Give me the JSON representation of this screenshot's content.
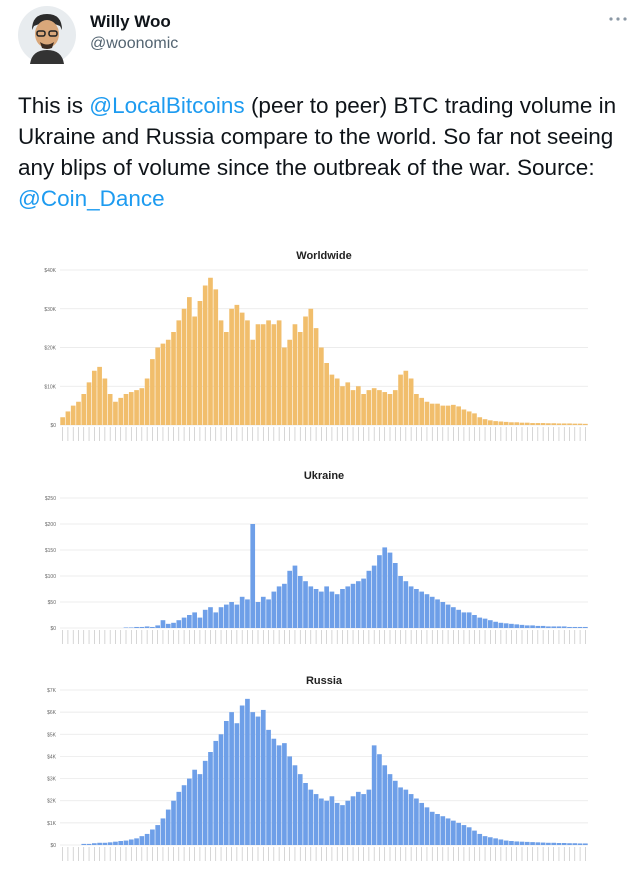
{
  "tweet": {
    "author_name": "Willy Woo",
    "author_handle": "@woonomic",
    "text_parts": [
      "This is ",
      "@LocalBitcoins",
      " (peer to peer) BTC trading volume in Ukraine and Russia compare to the world. So far not seeing any blips of volume since the outbreak of the war. Source: ",
      "@Coin_Dance"
    ]
  },
  "chart_data": [
    {
      "type": "bar",
      "title": "Worldwide",
      "color": "#f1be6c",
      "grid": true,
      "ylim": [
        0,
        40000
      ],
      "yticks": [
        {
          "value": 0,
          "label": "$0"
        },
        {
          "value": 10000,
          "label": "$10K"
        },
        {
          "value": 20000,
          "label": "$20K"
        },
        {
          "value": 30000,
          "label": "$30K"
        },
        {
          "value": 40000,
          "label": "$40K"
        }
      ],
      "values": [
        2000,
        3500,
        5000,
        6000,
        8000,
        11000,
        14000,
        15000,
        12000,
        8000,
        6000,
        7000,
        8000,
        8500,
        9000,
        9500,
        12000,
        17000,
        20000,
        21000,
        22000,
        24000,
        27000,
        30000,
        33000,
        28000,
        32000,
        36000,
        38000,
        35000,
        27000,
        24000,
        30000,
        31000,
        29000,
        27000,
        22000,
        26000,
        26000,
        27000,
        26000,
        27000,
        20000,
        22000,
        26000,
        24000,
        28000,
        30000,
        25000,
        20000,
        16000,
        13000,
        12000,
        10000,
        11000,
        9000,
        10000,
        8000,
        9000,
        9500,
        9000,
        8500,
        8000,
        9000,
        13000,
        14000,
        12000,
        8000,
        7000,
        6000,
        5500,
        5500,
        5000,
        5000,
        5200,
        4800,
        4000,
        3500,
        3000,
        2000,
        1500,
        1200,
        1000,
        900,
        800,
        700,
        700,
        600,
        600,
        500,
        500,
        500,
        450,
        450,
        400,
        400,
        400,
        350,
        350,
        300
      ]
    },
    {
      "type": "bar",
      "title": "Ukraine",
      "color": "#6e9fe8",
      "grid": true,
      "ylim": [
        0,
        250
      ],
      "yticks": [
        {
          "value": 0,
          "label": "$0"
        },
        {
          "value": 50,
          "label": "$50"
        },
        {
          "value": 100,
          "label": "$100"
        },
        {
          "value": 150,
          "label": "$150"
        },
        {
          "value": 200,
          "label": "$200"
        },
        {
          "value": 250,
          "label": "$250"
        }
      ],
      "values": [
        0,
        0,
        0,
        0,
        0,
        0,
        0,
        0,
        0,
        0,
        0,
        0,
        1,
        1,
        2,
        2,
        3,
        2,
        5,
        15,
        8,
        10,
        15,
        20,
        25,
        30,
        20,
        35,
        40,
        30,
        40,
        45,
        50,
        45,
        60,
        55,
        200,
        50,
        60,
        55,
        70,
        80,
        85,
        110,
        120,
        100,
        90,
        80,
        75,
        70,
        80,
        70,
        65,
        75,
        80,
        85,
        90,
        95,
        110,
        120,
        140,
        155,
        145,
        125,
        100,
        90,
        80,
        75,
        70,
        65,
        60,
        55,
        50,
        45,
        40,
        35,
        30,
        30,
        25,
        20,
        18,
        15,
        12,
        10,
        9,
        8,
        7,
        6,
        5,
        5,
        4,
        4,
        3,
        3,
        3,
        3,
        2,
        2,
        2,
        2
      ]
    },
    {
      "type": "bar",
      "title": "Russia",
      "color": "#6e9fe8",
      "grid": true,
      "ylim": [
        0,
        7000
      ],
      "yticks": [
        {
          "value": 0,
          "label": "$0"
        },
        {
          "value": 1000,
          "label": "$1K"
        },
        {
          "value": 2000,
          "label": "$2K"
        },
        {
          "value": 3000,
          "label": "$3K"
        },
        {
          "value": 4000,
          "label": "$4K"
        },
        {
          "value": 5000,
          "label": "$5K"
        },
        {
          "value": 6000,
          "label": "$6K"
        },
        {
          "value": 7000,
          "label": "$7K"
        }
      ],
      "values": [
        0,
        0,
        0,
        0,
        50,
        50,
        80,
        100,
        100,
        120,
        150,
        180,
        200,
        250,
        300,
        400,
        500,
        700,
        900,
        1200,
        1600,
        2000,
        2400,
        2700,
        3000,
        3400,
        3200,
        3800,
        4200,
        4700,
        5000,
        5600,
        6000,
        5500,
        6300,
        6600,
        6000,
        5800,
        6100,
        5200,
        4800,
        4500,
        4600,
        4000,
        3600,
        3200,
        2800,
        2500,
        2300,
        2100,
        2000,
        2200,
        1900,
        1800,
        2000,
        2200,
        2400,
        2300,
        2500,
        4500,
        4100,
        3600,
        3200,
        2900,
        2600,
        2500,
        2300,
        2100,
        1900,
        1700,
        1500,
        1400,
        1300,
        1200,
        1100,
        1000,
        900,
        800,
        650,
        500,
        400,
        350,
        300,
        250,
        200,
        180,
        160,
        150,
        140,
        130,
        120,
        110,
        100,
        100,
        90,
        90,
        80,
        80,
        70,
        70
      ]
    }
  ]
}
